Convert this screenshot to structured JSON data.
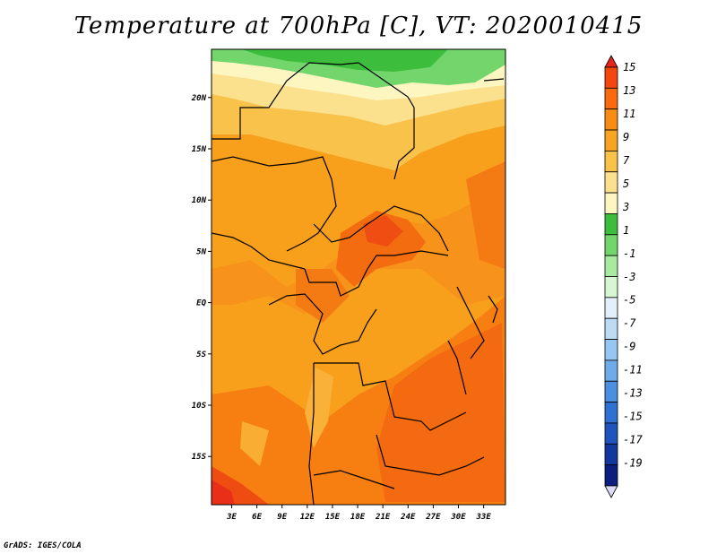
{
  "title": "Temperature at 700hPa [C], VT: 2020010415",
  "credit": "GrADS: IGES/COLA",
  "lat_labels": [
    "20N",
    "15N",
    "10N",
    "5N",
    "EQ",
    "5S",
    "10S",
    "15S"
  ],
  "lat_values": [
    20,
    15,
    10,
    5,
    0,
    -5,
    -10,
    -15
  ],
  "lon_labels": [
    "3E",
    "6E",
    "9E",
    "12E",
    "15E",
    "18E",
    "21E",
    "24E",
    "27E",
    "30E",
    "33E"
  ],
  "lon_values": [
    3,
    6,
    9,
    12,
    15,
    18,
    21,
    24,
    27,
    30,
    33
  ],
  "colorbar": {
    "labels": [
      "15",
      "13",
      "11",
      "9",
      "7",
      "5",
      "3",
      "1",
      "-1",
      "-3",
      "-5",
      "-7",
      "-9",
      "-11",
      "-13",
      "-15",
      "-17",
      "-19"
    ],
    "colors": [
      "#e4261b",
      "#f4460f",
      "#fa6a0f",
      "#f98c12",
      "#f8a423",
      "#f9c24a",
      "#fbe18d",
      "#fdf6c0",
      "#3cbe3c",
      "#72d66d",
      "#a7eaa0",
      "#d7f6d2",
      "#e2f0fb",
      "#bcdcf6",
      "#96c6f2",
      "#6fabe9",
      "#4a8fe0",
      "#2f70d3",
      "#1f53bd",
      "#13379e",
      "#0a1f7e",
      "#dcdcfa"
    ]
  }
}
